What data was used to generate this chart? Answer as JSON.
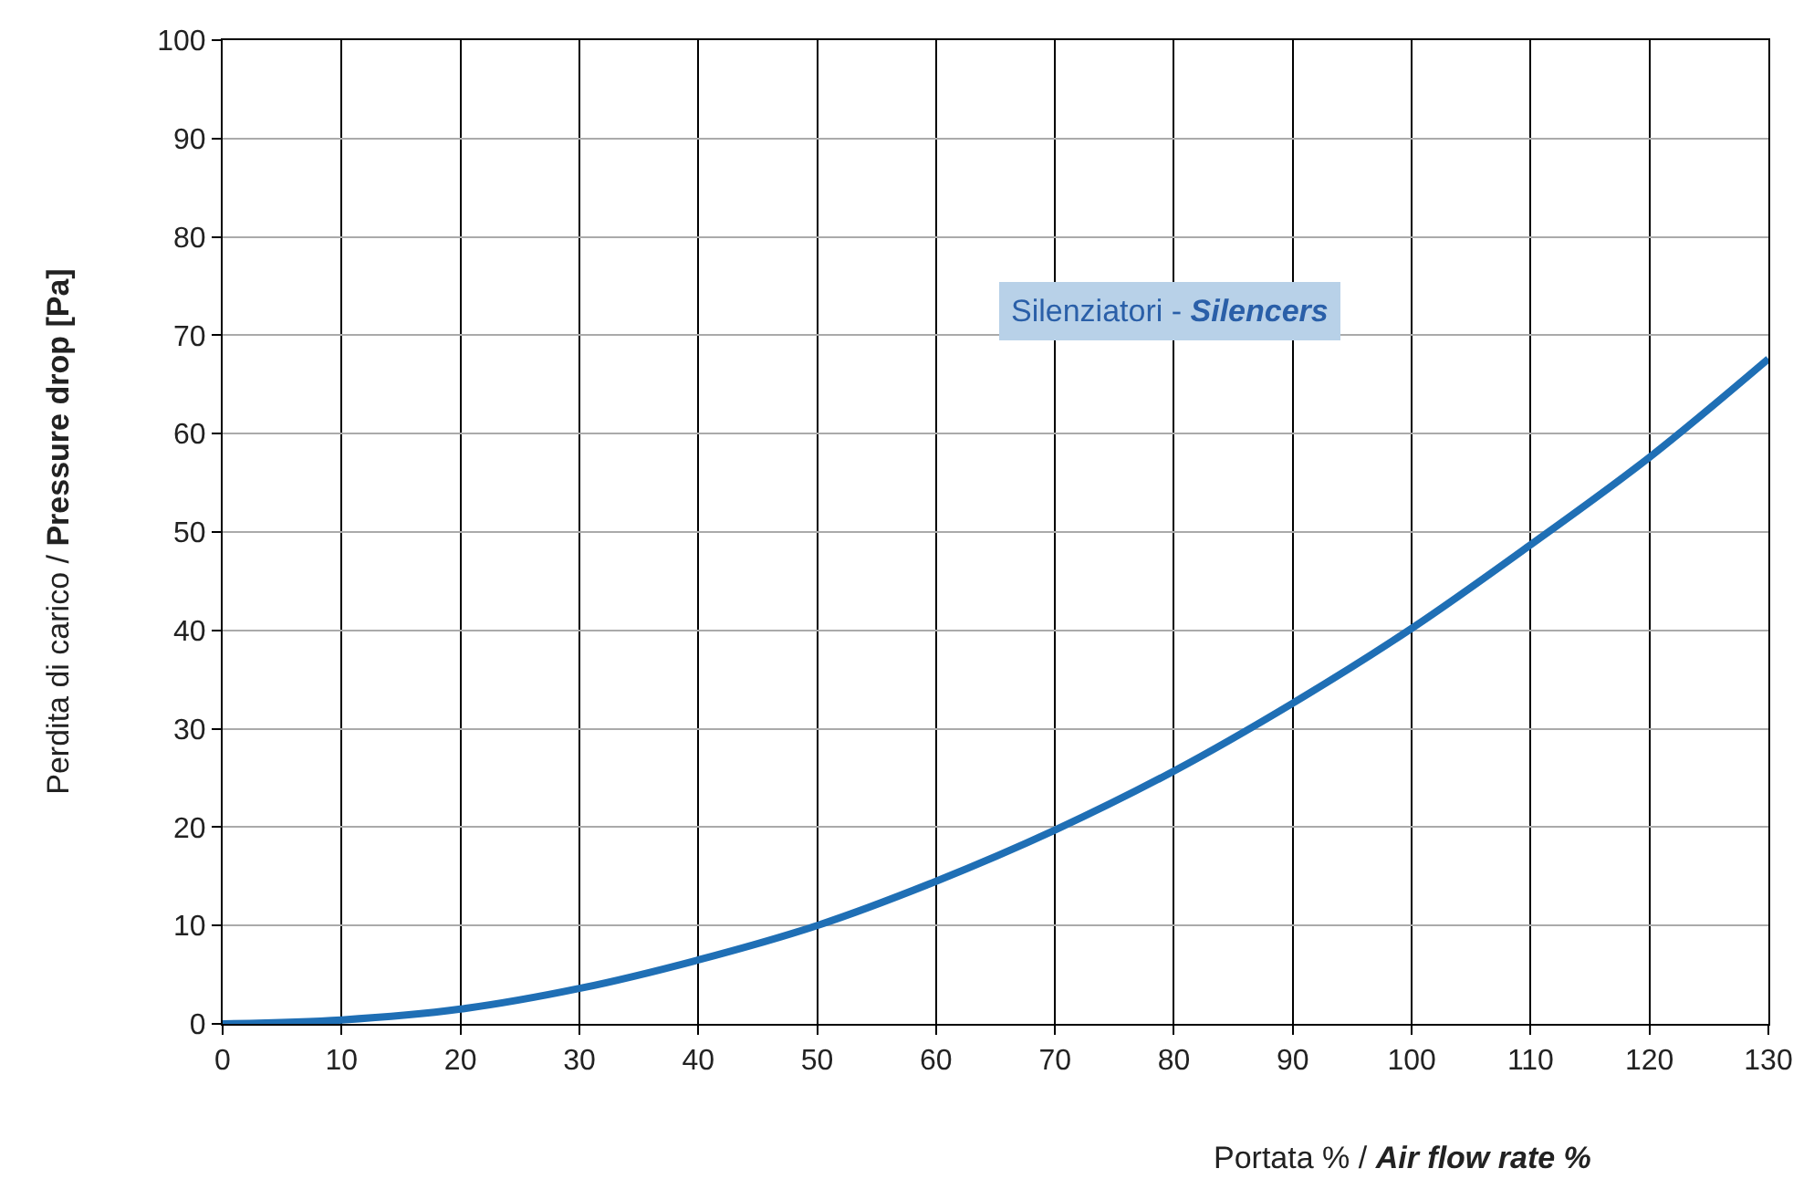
{
  "chart_data": {
    "type": "line",
    "xlabel": "Portata % / Air flow rate %",
    "ylabel": "Perdita di carico / Pressure drop [Pa]",
    "annotations": [
      "Silenziatori - Silencers"
    ],
    "x": [
      0,
      10,
      20,
      30,
      40,
      50,
      60,
      70,
      80,
      90,
      100,
      110,
      120,
      130
    ],
    "series": [
      {
        "color": "#1f6fb5",
        "values": [
          0,
          0.4,
          1.5,
          3.6,
          6.5,
          10,
          14.5,
          19.7,
          25.7,
          32.6,
          40.2,
          48.7,
          57.6,
          67.6
        ]
      }
    ],
    "xlim": [
      0,
      130
    ],
    "xticks": [
      0,
      10,
      20,
      30,
      40,
      50,
      60,
      70,
      80,
      90,
      100,
      110,
      120,
      130
    ],
    "ylim": [
      0,
      100
    ],
    "yticks": [
      0,
      10,
      20,
      30,
      40,
      50,
      60,
      70,
      80,
      90,
      100
    ],
    "grid": true,
    "legend": false,
    "marker": "none",
    "line_style": "solid"
  }
}
